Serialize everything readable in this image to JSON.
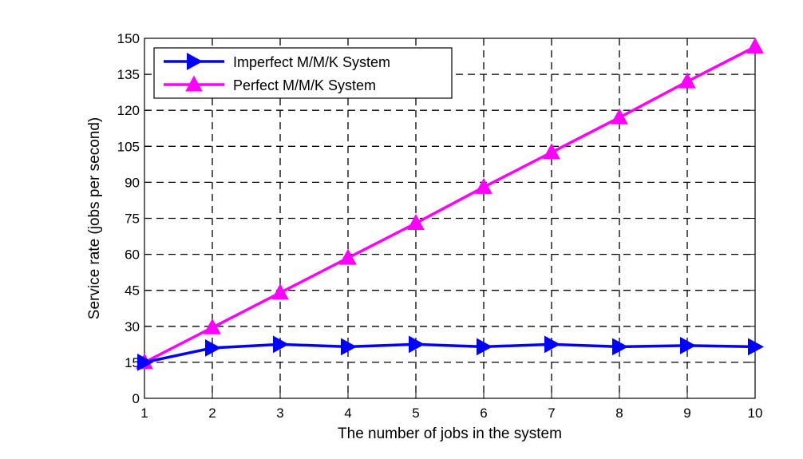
{
  "chart_data": {
    "type": "line",
    "title": "",
    "xlabel": "The number of jobs in the system",
    "ylabel": "Service rate (jobs per second)",
    "x": [
      1,
      2,
      3,
      4,
      5,
      6,
      7,
      8,
      9,
      10
    ],
    "xlim": [
      1,
      10
    ],
    "ylim": [
      0,
      150
    ],
    "xticks": [
      1,
      2,
      3,
      4,
      5,
      6,
      7,
      8,
      9,
      10
    ],
    "yticks": [
      0,
      15,
      30,
      45,
      60,
      75,
      90,
      105,
      120,
      135,
      150
    ],
    "grid": true,
    "legend_position": "top-left",
    "series": [
      {
        "name": "Imperfect M/M/K System",
        "values": [
          15,
          21,
          22.5,
          21.5,
          22.5,
          21.5,
          22.5,
          21.5,
          22,
          21.5
        ],
        "color": "#0000ff",
        "marker": "triangle-right"
      },
      {
        "name": "Perfect M/M/K System",
        "values": [
          15,
          29.5,
          44,
          58.5,
          73,
          88,
          102.5,
          117,
          132,
          146.5
        ],
        "color": "#ff00ff",
        "marker": "triangle-up"
      }
    ]
  }
}
